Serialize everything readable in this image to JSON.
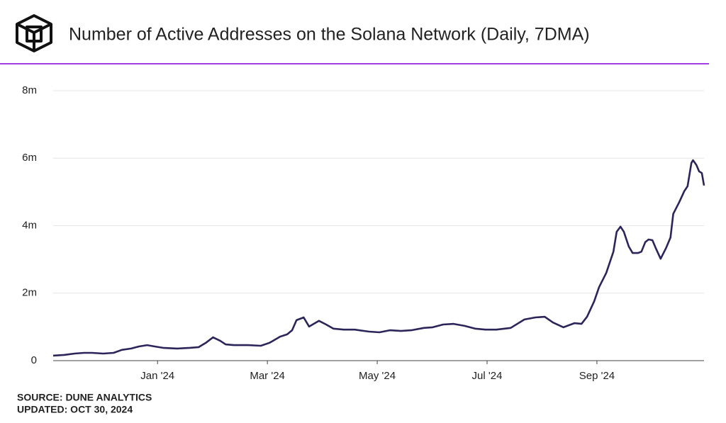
{
  "chart_data": {
    "type": "line",
    "title": "Number of Active Addresses on the Solana Network (Daily, 7DMA)",
    "source": "SOURCE: DUNE ANALYTICS",
    "updated": "UPDATED: OCT 30, 2024",
    "x": [
      -1.9,
      -1.7,
      -1.51,
      -1.34,
      -1.19,
      -0.99,
      -0.8,
      -0.65,
      -0.48,
      -0.34,
      -0.19,
      -0.05,
      0.1,
      0.36,
      0.59,
      0.75,
      0.88,
      1.01,
      1.14,
      1.24,
      1.39,
      1.65,
      1.88,
      2.04,
      2.23,
      2.36,
      2.45,
      2.53,
      2.66,
      2.76,
      2.94,
      3.07,
      3.2,
      3.39,
      3.59,
      3.85,
      4.04,
      4.23,
      4.43,
      4.62,
      4.85,
      5.01,
      5.2,
      5.39,
      5.59,
      5.78,
      5.97,
      6.17,
      6.43,
      6.68,
      6.88,
      7.05,
      7.2,
      7.39,
      7.59,
      7.72,
      7.82,
      7.95,
      8.04,
      8.17,
      8.3,
      8.36,
      8.43,
      8.49,
      8.58,
      8.65,
      8.75,
      8.81,
      8.88,
      8.94,
      9.01,
      9.07,
      9.16,
      9.26,
      9.34,
      9.39,
      9.5,
      9.59,
      9.65,
      9.72,
      9.75,
      9.81,
      9.86,
      9.91,
      9.95
    ],
    "series": [
      {
        "name": "Active Addresses",
        "color": "#2b2559",
        "values": [
          150000,
          170000,
          210000,
          230000,
          230000,
          210000,
          230000,
          320000,
          360000,
          420000,
          460000,
          420000,
          380000,
          360000,
          380000,
          400000,
          530000,
          690000,
          590000,
          480000,
          460000,
          460000,
          440000,
          530000,
          710000,
          780000,
          900000,
          1200000,
          1280000,
          1010000,
          1180000,
          1070000,
          950000,
          920000,
          920000,
          860000,
          840000,
          900000,
          880000,
          900000,
          970000,
          990000,
          1070000,
          1090000,
          1030000,
          950000,
          920000,
          920000,
          970000,
          1220000,
          1280000,
          1300000,
          1130000,
          990000,
          1110000,
          1090000,
          1300000,
          1760000,
          2180000,
          2600000,
          3230000,
          3820000,
          3970000,
          3820000,
          3380000,
          3190000,
          3190000,
          3230000,
          3510000,
          3590000,
          3570000,
          3340000,
          3020000,
          3340000,
          3650000,
          4350000,
          4700000,
          5020000,
          5170000,
          5860000,
          5940000,
          5800000,
          5610000,
          5560000,
          5190000
        ]
      }
    ],
    "xlim": [
      -1.9,
      9.95
    ],
    "xticks": [
      {
        "value": 0,
        "label": "Jan '24"
      },
      {
        "value": 2,
        "label": "Mar '24"
      },
      {
        "value": 4,
        "label": "May '24"
      },
      {
        "value": 6,
        "label": "Jul '24"
      },
      {
        "value": 8,
        "label": "Sep '24"
      }
    ],
    "ylim": [
      0,
      8000000
    ],
    "yticks": [
      0,
      {
        "value": 2000000,
        "label": "2m"
      },
      {
        "value": 4000000,
        "label": "4m"
      },
      {
        "value": 6000000,
        "label": "6m"
      },
      {
        "value": 8000000,
        "label": "8m"
      }
    ],
    "grid": true
  }
}
